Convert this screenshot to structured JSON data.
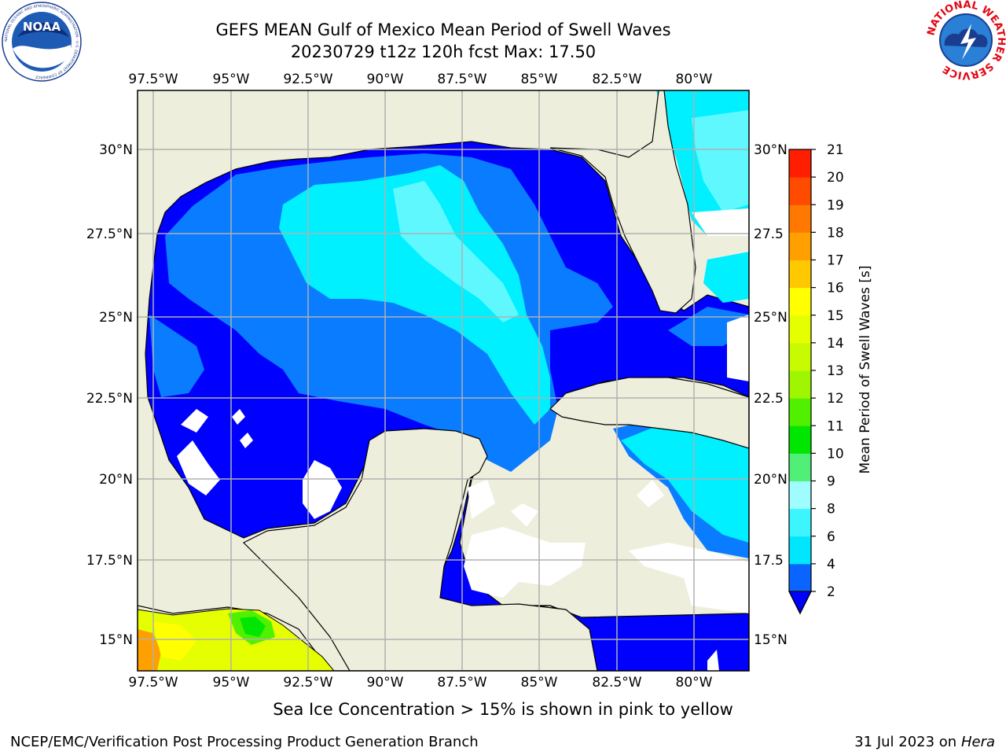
{
  "header": {
    "title_line1": "GEFS MEAN Gulf of Mexico Mean Period of Swell Waves",
    "title_line2": "20230729 t12z 120h fcst   Max: 17.50"
  },
  "logos": {
    "left": {
      "name": "noaa-logo",
      "text": "NOAA",
      "ring_text": "NATIONAL OCEANIC AND ATMOSPHERIC ADMINISTRATION · U.S. DEPARTMENT OF COMMERCE"
    },
    "right": {
      "name": "nws-logo",
      "ring_text": "NATIONAL WEATHER SERVICE"
    }
  },
  "map": {
    "lon_labels": [
      "97.5°W",
      "95°W",
      "92.5°W",
      "90°W",
      "87.5°W",
      "85°W",
      "82.5°W",
      "80°W"
    ],
    "lat_labels_left": [
      "30°N",
      "27.5°N",
      "25°N",
      "22.5°N",
      "20°N",
      "17.5°N",
      "15°N"
    ],
    "lat_labels_right": [
      "30°N",
      "27.5",
      "25°N",
      "22.5",
      "20°N",
      "17.5",
      "15°N"
    ],
    "colors": {
      "land": "#eeeedd",
      "ocean_missing": "#ffffff",
      "grid": "#b0b0b0"
    }
  },
  "colorbar": {
    "label": "Mean Period of Swell Waves [s]",
    "ticks": [
      "2",
      "4",
      "6",
      "8",
      "9",
      "10",
      "11",
      "12",
      "13",
      "14",
      "15",
      "16",
      "17",
      "18",
      "19",
      "20",
      "21"
    ],
    "colors": [
      "#0a64ff",
      "#00e6ff",
      "#3cf5ff",
      "#9ffcff",
      "#50f078",
      "#00e600",
      "#50f000",
      "#a0f500",
      "#c8fa00",
      "#e6ff00",
      "#ffff00",
      "#ffc800",
      "#ffa000",
      "#ff7800",
      "#ff4b00",
      "#ff1e00"
    ],
    "extend_color": "#0000ff"
  },
  "notes": {
    "ice": "Sea Ice Concentration > 15% is shown in pink to yellow"
  },
  "footer": {
    "left": "NCEP/EMC/Verification Post Processing Product Generation Branch",
    "right_date": "31 Jul 2023 on ",
    "right_host": "Hera"
  }
}
